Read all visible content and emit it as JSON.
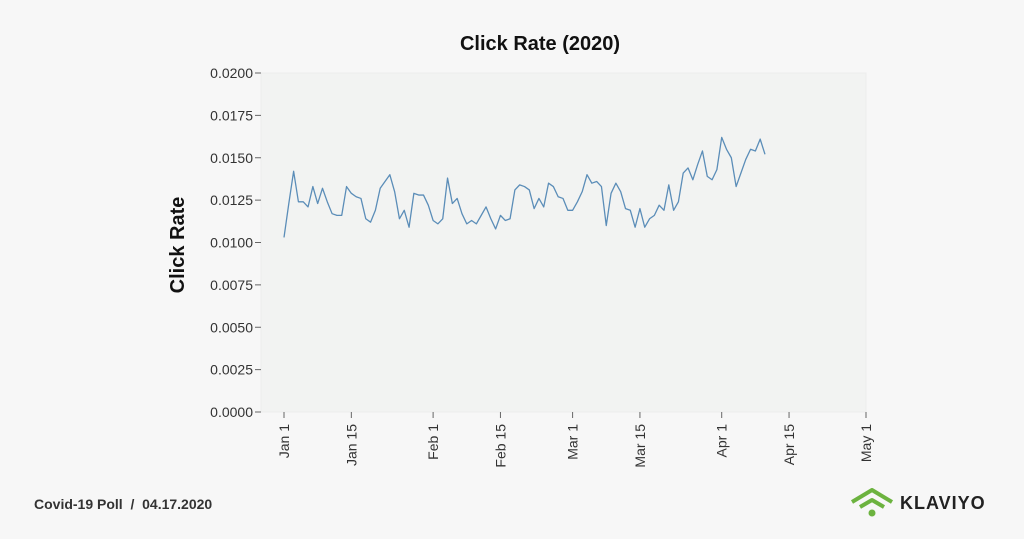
{
  "chart_data": {
    "type": "line",
    "title": "Click Rate (2020)",
    "xlabel": "",
    "ylabel": "Click Rate",
    "ylim": [
      0,
      0.02
    ],
    "yticks": [
      0.0,
      0.0025,
      0.005,
      0.0075,
      0.01,
      0.0125,
      0.015,
      0.0175,
      0.02
    ],
    "ytick_labels": [
      "0.0000",
      "0.0025",
      "0.0050",
      "0.0075",
      "0.0100",
      "0.0125",
      "0.0150",
      "0.0175",
      "0.0200"
    ],
    "xlim": [
      "2020-01-01",
      "2020-05-01"
    ],
    "xticks": [
      "2020-01-01",
      "2020-01-15",
      "2020-02-01",
      "2020-02-15",
      "2020-03-01",
      "2020-03-15",
      "2020-04-01",
      "2020-04-15",
      "2020-05-01"
    ],
    "xtick_labels": [
      "Jan 1",
      "Jan 15",
      "Feb 1",
      "Feb 15",
      "Mar 1",
      "Mar 15",
      "Apr 1",
      "Apr 15",
      "May 1"
    ],
    "grid": false,
    "series": [
      {
        "color": "#5b8db8",
        "x": [
          "2020-01-01",
          "2020-01-02",
          "2020-01-03",
          "2020-01-04",
          "2020-01-05",
          "2020-01-06",
          "2020-01-07",
          "2020-01-08",
          "2020-01-09",
          "2020-01-10",
          "2020-01-11",
          "2020-01-12",
          "2020-01-13",
          "2020-01-14",
          "2020-01-15",
          "2020-01-16",
          "2020-01-17",
          "2020-01-18",
          "2020-01-19",
          "2020-01-20",
          "2020-01-21",
          "2020-01-22",
          "2020-01-23",
          "2020-01-24",
          "2020-01-25",
          "2020-01-26",
          "2020-01-27",
          "2020-01-28",
          "2020-01-29",
          "2020-01-30",
          "2020-01-31",
          "2020-02-01",
          "2020-02-02",
          "2020-02-03",
          "2020-02-04",
          "2020-02-05",
          "2020-02-06",
          "2020-02-07",
          "2020-02-08",
          "2020-02-09",
          "2020-02-10",
          "2020-02-11",
          "2020-02-12",
          "2020-02-13",
          "2020-02-14",
          "2020-02-15",
          "2020-02-16",
          "2020-02-17",
          "2020-02-18",
          "2020-02-19",
          "2020-02-20",
          "2020-02-21",
          "2020-02-22",
          "2020-02-23",
          "2020-02-24",
          "2020-02-25",
          "2020-02-26",
          "2020-02-27",
          "2020-02-28",
          "2020-02-29",
          "2020-03-01",
          "2020-03-02",
          "2020-03-03",
          "2020-03-04",
          "2020-03-05",
          "2020-03-06",
          "2020-03-07",
          "2020-03-08",
          "2020-03-09",
          "2020-03-10",
          "2020-03-11",
          "2020-03-12",
          "2020-03-13",
          "2020-03-14",
          "2020-03-15",
          "2020-03-16",
          "2020-03-17",
          "2020-03-18",
          "2020-03-19",
          "2020-03-20",
          "2020-03-21",
          "2020-03-22",
          "2020-03-23",
          "2020-03-24",
          "2020-03-25",
          "2020-03-26",
          "2020-03-27",
          "2020-03-28",
          "2020-03-29",
          "2020-03-30",
          "2020-03-31",
          "2020-04-01",
          "2020-04-02",
          "2020-04-03",
          "2020-04-04",
          "2020-04-05",
          "2020-04-06",
          "2020-04-07",
          "2020-04-08",
          "2020-04-09",
          "2020-04-10"
        ],
        "y": [
          0.0103,
          0.0123,
          0.0142,
          0.0124,
          0.0124,
          0.0121,
          0.0133,
          0.0123,
          0.0132,
          0.0124,
          0.0117,
          0.0116,
          0.0116,
          0.0133,
          0.0129,
          0.0127,
          0.0126,
          0.0114,
          0.0112,
          0.0119,
          0.0132,
          0.0136,
          0.014,
          0.013,
          0.0114,
          0.0119,
          0.0109,
          0.0129,
          0.0128,
          0.0128,
          0.0122,
          0.0113,
          0.0111,
          0.0114,
          0.0138,
          0.0123,
          0.0126,
          0.0117,
          0.0111,
          0.0113,
          0.0111,
          0.0116,
          0.0121,
          0.0114,
          0.0108,
          0.0116,
          0.0113,
          0.0114,
          0.0131,
          0.0134,
          0.0133,
          0.0131,
          0.012,
          0.0126,
          0.0121,
          0.0135,
          0.0133,
          0.0127,
          0.0126,
          0.0119,
          0.0119,
          0.0124,
          0.013,
          0.014,
          0.0135,
          0.0136,
          0.0133,
          0.011,
          0.0129,
          0.0135,
          0.013,
          0.012,
          0.0119,
          0.0109,
          0.012,
          0.0109,
          0.0114,
          0.0116,
          0.0122,
          0.0119,
          0.0134,
          0.0119,
          0.0124,
          0.0141,
          0.0144,
          0.0137,
          0.0146,
          0.0154,
          0.0139,
          0.0137,
          0.0143,
          0.0162,
          0.0155,
          0.015,
          0.0133,
          0.0141,
          0.0149,
          0.0155,
          0.0154,
          0.0161,
          0.0152
        ]
      }
    ]
  },
  "footer": {
    "source": "Covid-19 Poll  /  04.17.2020"
  },
  "logo": {
    "name": "KLAVIYO",
    "icon": "klaviyo-wifi-icon",
    "color": "#6cb33f"
  }
}
